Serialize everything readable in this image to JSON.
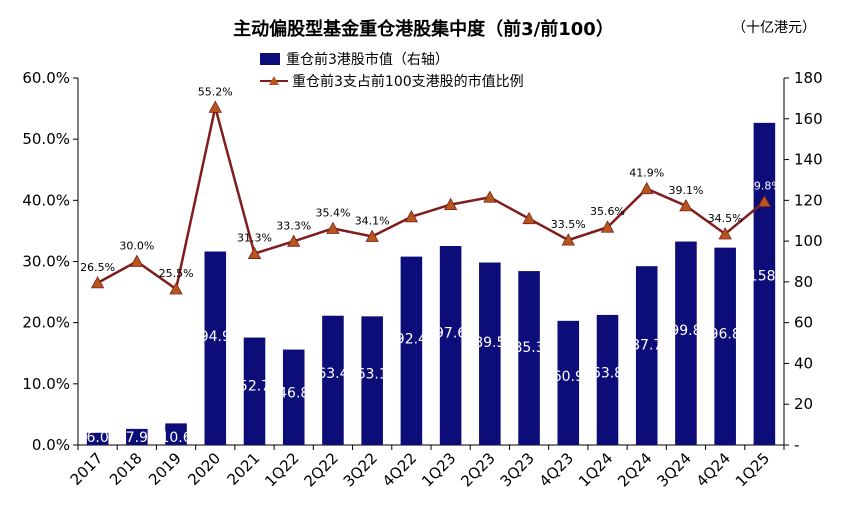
{
  "title": "主动偏股型基金重仓港股集中度（前3/前100）",
  "unit": "（十亿港元）",
  "legend": {
    "bar_label": "重仓前3港股市值（右轴）",
    "line_label": "重仓前3支占前100支港股的市值比例"
  },
  "colors": {
    "bar": "#0d0d7a",
    "line": "#7f1d1d",
    "marker": "#b5561c"
  },
  "chart_data": {
    "type": "bar",
    "categories": [
      "2017",
      "2018",
      "2019",
      "2020",
      "2021",
      "1Q22",
      "2Q22",
      "3Q22",
      "4Q22",
      "1Q23",
      "2Q23",
      "3Q23",
      "4Q23",
      "1Q24",
      "2Q24",
      "3Q24",
      "4Q24",
      "1Q25"
    ],
    "series": [
      {
        "name": "重仓前3港股市值（右轴）",
        "type": "bar",
        "axis": "right",
        "values": [
          6.0,
          7.9,
          10.6,
          94.9,
          52.7,
          46.8,
          63.4,
          63.1,
          92.4,
          97.6,
          89.5,
          85.3,
          60.9,
          63.8,
          87.7,
          99.8,
          96.8,
          158.0
        ],
        "labels": [
          "6.0",
          "7.9",
          "10.6",
          "94.9",
          "52.7",
          "46.8",
          "63.4",
          "63.1",
          "92.4",
          "97.6",
          "89.5",
          "85.3",
          "60.9",
          "63.8",
          "87.7",
          "99.8",
          "96.8",
          "158."
        ]
      },
      {
        "name": "重仓前3支占前100支港股的市值比例",
        "type": "line",
        "axis": "left",
        "values": [
          26.5,
          30.0,
          25.5,
          55.2,
          31.3,
          33.3,
          35.4,
          34.1,
          37.3,
          39.3,
          40.5,
          37.0,
          33.5,
          35.6,
          41.9,
          39.1,
          34.5,
          39.8
        ],
        "labels": [
          "26.5%",
          "30.0%",
          "25.5%",
          "55.2%",
          "31.3%",
          "33.3%",
          "35.4%",
          "34.1%",
          "",
          "",
          "",
          "",
          "33.5%",
          "35.6%",
          "41.9%",
          "39.1%",
          "34.5%",
          "39.8%"
        ]
      }
    ],
    "y_left": {
      "ticks": [
        "0.0%",
        "10.0%",
        "20.0%",
        "30.0%",
        "40.0%",
        "50.0%",
        "60.0%"
      ],
      "range": [
        0,
        60
      ]
    },
    "y_right": {
      "ticks": [
        "-",
        "20",
        "40",
        "60",
        "80",
        "100",
        "120",
        "140",
        "160",
        "180"
      ],
      "range": [
        0,
        180
      ]
    },
    "legend_position": "top-center"
  }
}
